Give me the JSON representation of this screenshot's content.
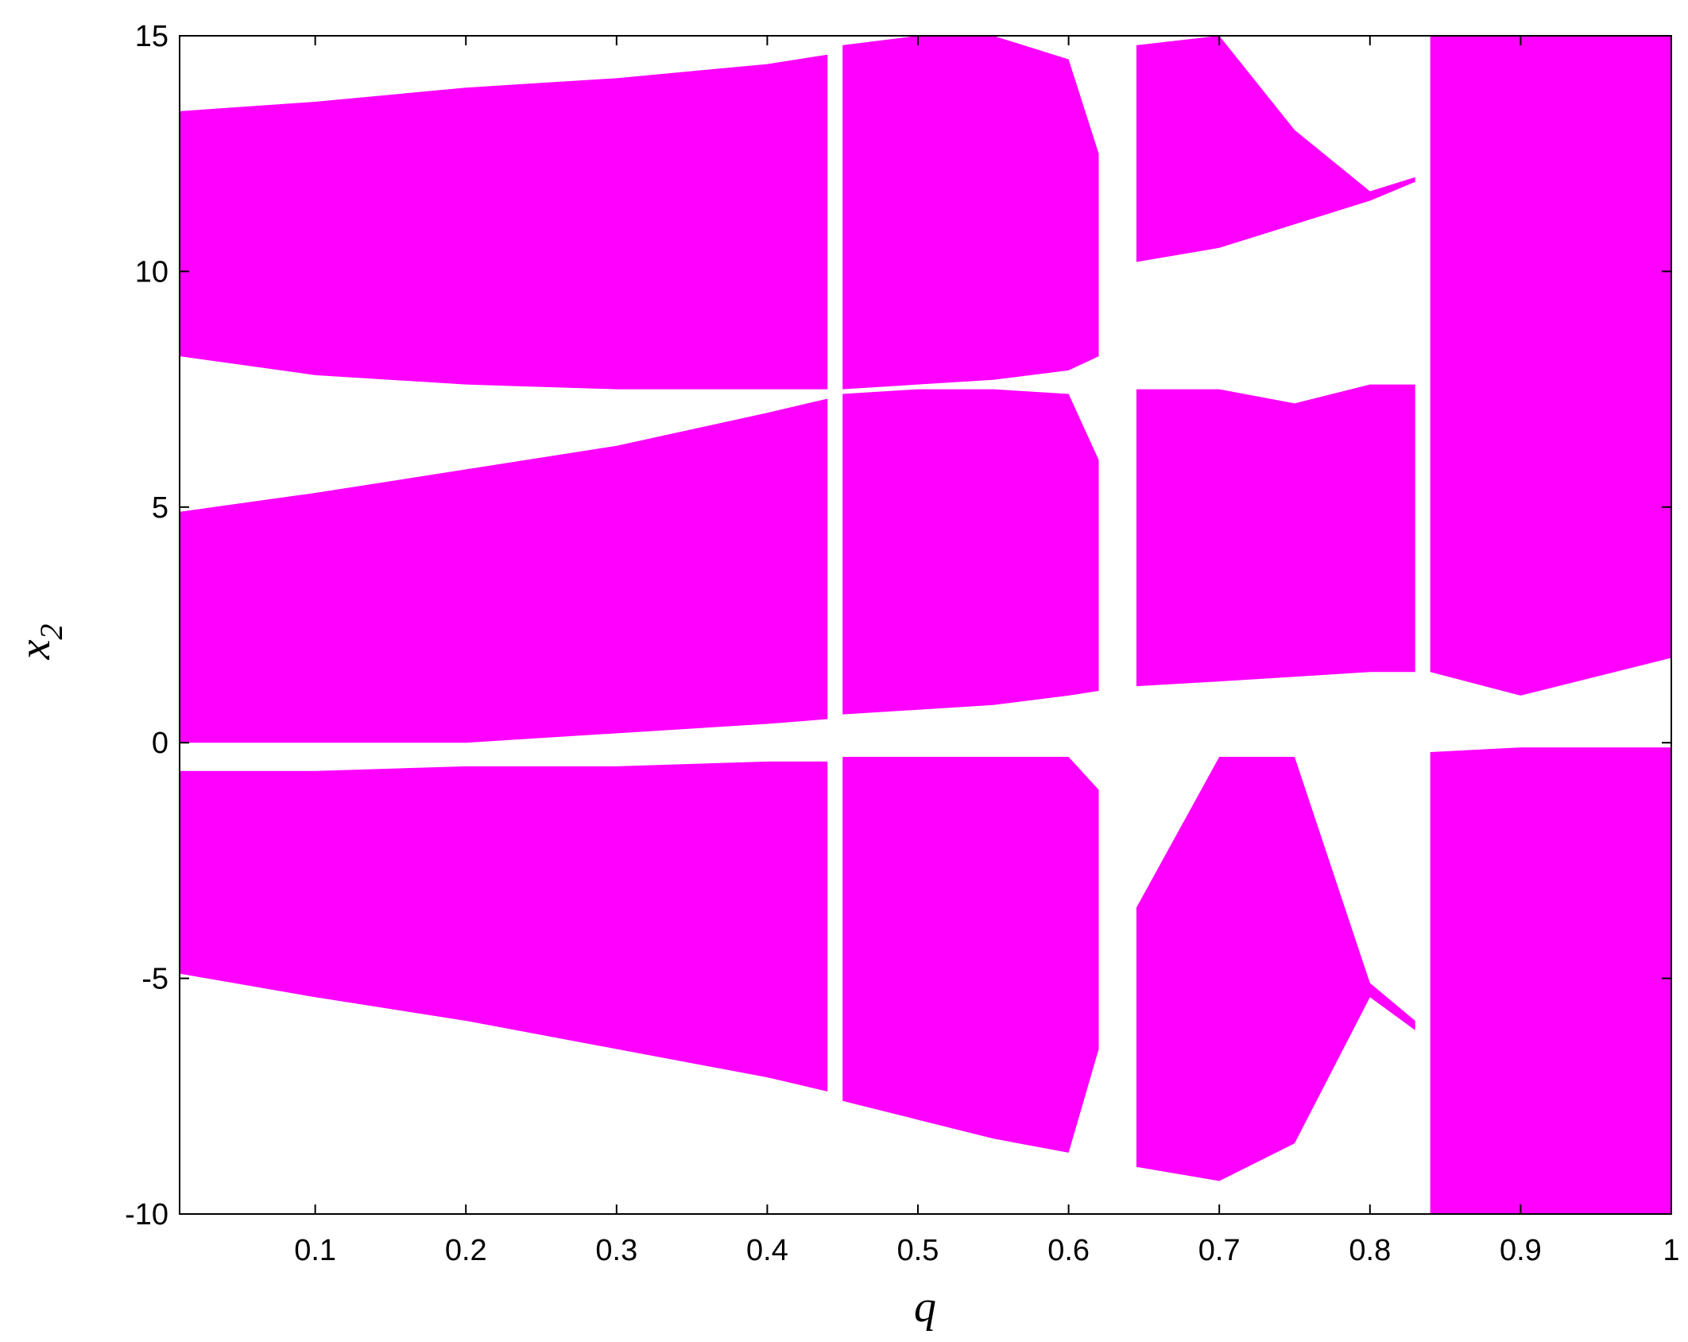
{
  "chart_data": {
    "type": "range_area",
    "color": "#ff00ff",
    "xlabel": "q",
    "ylabel": "x",
    "ylabel_sub": "2",
    "xlim": [
      0.01,
      1
    ],
    "ylim": [
      -10,
      15
    ],
    "xticks": [
      0.1,
      0.2,
      0.3,
      0.4,
      0.5,
      0.6,
      0.7,
      0.8,
      0.9,
      1
    ],
    "yticks": [
      -10,
      -5,
      0,
      5,
      10,
      15
    ],
    "series": [
      {
        "x": [
          0.01,
          0.1,
          0.2,
          0.3,
          0.4,
          0.44
        ],
        "low": [
          8.2,
          7.8,
          7.6,
          7.5,
          7.5,
          7.5
        ],
        "high": [
          13.4,
          13.6,
          13.9,
          14.1,
          14.4,
          14.6
        ]
      },
      {
        "x": [
          0.45,
          0.5,
          0.55,
          0.6,
          0.62
        ],
        "low": [
          7.5,
          7.6,
          7.7,
          7.9,
          8.2
        ],
        "high": [
          14.8,
          15,
          15,
          14.5,
          12.5
        ]
      },
      {
        "x": [
          0.645,
          0.7,
          0.75,
          0.8,
          0.83
        ],
        "low": [
          10.2,
          10.5,
          11,
          11.5,
          11.9
        ],
        "high": [
          14.8,
          15,
          13,
          11.7,
          12
        ]
      },
      {
        "x": [
          0.84,
          0.9,
          1
        ],
        "low": [
          1.5,
          1,
          1.8
        ],
        "high": [
          15,
          15,
          15
        ]
      },
      {
        "x": [
          0.01,
          0.1,
          0.2,
          0.3,
          0.4,
          0.44
        ],
        "low": [
          0,
          0,
          0,
          0.2,
          0.4,
          0.5
        ],
        "high": [
          4.9,
          5.3,
          5.8,
          6.3,
          7,
          7.3
        ]
      },
      {
        "x": [
          0.45,
          0.5,
          0.55,
          0.6,
          0.62
        ],
        "low": [
          0.6,
          0.7,
          0.8,
          1,
          1.1
        ],
        "high": [
          7.4,
          7.5,
          7.5,
          7.4,
          6
        ]
      },
      {
        "x": [
          0.645,
          0.7,
          0.75,
          0.8,
          0.83
        ],
        "low": [
          1.2,
          1.3,
          1.4,
          1.5,
          1.5
        ],
        "high": [
          7.5,
          7.5,
          7.2,
          7.6,
          7.6
        ]
      },
      {
        "x": [
          0.01,
          0.1,
          0.2,
          0.3,
          0.4,
          0.44
        ],
        "low": [
          -4.9,
          -5.4,
          -5.9,
          -6.5,
          -7.1,
          -7.4
        ],
        "high": [
          -0.6,
          -0.6,
          -0.5,
          -0.5,
          -0.4,
          -0.4
        ]
      },
      {
        "x": [
          0.45,
          0.5,
          0.55,
          0.6,
          0.62
        ],
        "low": [
          -7.6,
          -8,
          -8.4,
          -8.7,
          -6.5
        ],
        "high": [
          -0.3,
          -0.3,
          -0.3,
          -0.3,
          -1
        ]
      },
      {
        "x": [
          0.645,
          0.7,
          0.75,
          0.8,
          0.83
        ],
        "low": [
          -9,
          -9.3,
          -8.5,
          -5.4,
          -6.1
        ],
        "high": [
          -3.5,
          -0.3,
          -0.3,
          -5.1,
          -5.9
        ]
      },
      {
        "x": [
          0.84,
          0.9,
          1
        ],
        "low": [
          -10,
          -10,
          -10
        ],
        "high": [
          -0.2,
          -0.1,
          -0.1
        ]
      }
    ]
  }
}
